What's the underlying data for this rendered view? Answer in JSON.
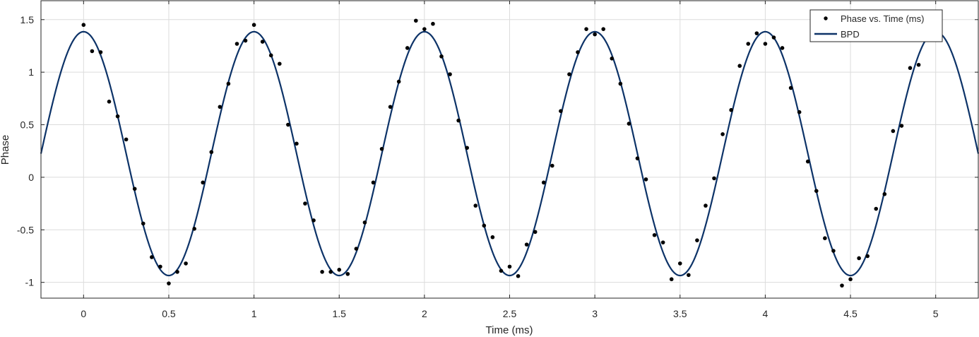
{
  "chart_data": {
    "type": "scatter",
    "xlabel": "Time (ms)",
    "ylabel": "Phase",
    "xlim": [
      -0.25,
      5.25
    ],
    "ylim": [
      -1.15,
      1.68
    ],
    "xticks": [
      0,
      0.5,
      1,
      1.5,
      2,
      2.5,
      3,
      3.5,
      4,
      4.5,
      5
    ],
    "xtick_labels": [
      "0",
      "0.5",
      "1",
      "1.5",
      "2",
      "2.5",
      "3",
      "3.5",
      "4",
      "4.5",
      "5"
    ],
    "yticks": [
      -1,
      -0.5,
      0,
      0.5,
      1,
      1.5
    ],
    "ytick_labels": [
      "-1",
      "-0.5",
      "0",
      "0.5",
      "1",
      "1.5"
    ],
    "grid": true,
    "legend_position": "top-right",
    "series": [
      {
        "name": "Phase vs. Time (ms)",
        "kind": "markers",
        "color": "#000000",
        "x": [
          0,
          0.05,
          0.1,
          0.15,
          0.2,
          0.25,
          0.3,
          0.35,
          0.4,
          0.45,
          0.5,
          0.55,
          0.6,
          0.65,
          0.7,
          0.75,
          0.8,
          0.85,
          0.9,
          0.95,
          1,
          1.05,
          1.1,
          1.15,
          1.2,
          1.25,
          1.3,
          1.35,
          1.4,
          1.45,
          1.5,
          1.55,
          1.6,
          1.65,
          1.7,
          1.75,
          1.8,
          1.85,
          1.9,
          1.95,
          2,
          2.05,
          2.1,
          2.15,
          2.2,
          2.25,
          2.3,
          2.35,
          2.4,
          2.45,
          2.5,
          2.55,
          2.6,
          2.65,
          2.7,
          2.75,
          2.8,
          2.85,
          2.9,
          2.95,
          3,
          3.05,
          3.1,
          3.15,
          3.2,
          3.25,
          3.3,
          3.35,
          3.4,
          3.45,
          3.5,
          3.55,
          3.6,
          3.65,
          3.7,
          3.75,
          3.8,
          3.85,
          3.9,
          3.95,
          4,
          4.05,
          4.1,
          4.15,
          4.2,
          4.25,
          4.3,
          4.35,
          4.4,
          4.45,
          4.5,
          4.55,
          4.6,
          4.65,
          4.7,
          4.75,
          4.8,
          4.85,
          4.9
        ],
        "y": [
          1.45,
          1.2,
          1.19,
          0.72,
          0.58,
          0.36,
          -0.11,
          -0.44,
          -0.76,
          -0.85,
          -1.01,
          -0.9,
          -0.82,
          -0.49,
          -0.05,
          0.24,
          0.67,
          0.89,
          1.27,
          1.3,
          1.45,
          1.29,
          1.16,
          1.08,
          0.5,
          0.32,
          -0.25,
          -0.41,
          -0.9,
          -0.9,
          -0.88,
          -0.92,
          -0.68,
          -0.43,
          -0.05,
          0.27,
          0.67,
          0.91,
          1.23,
          1.49,
          1.41,
          1.46,
          1.15,
          0.98,
          0.54,
          0.28,
          -0.27,
          -0.46,
          -0.57,
          -0.89,
          -0.85,
          -0.94,
          -0.64,
          -0.52,
          -0.05,
          0.11,
          0.63,
          0.98,
          1.19,
          1.41,
          1.36,
          1.41,
          1.13,
          0.89,
          0.51,
          0.18,
          -0.02,
          -0.55,
          -0.62,
          -0.97,
          -0.82,
          -0.93,
          -0.6,
          -0.27,
          -0.01,
          0.41,
          0.64,
          1.06,
          1.27,
          1.37,
          1.27,
          1.33,
          1.23,
          0.85,
          0.62,
          0.15,
          -0.13,
          -0.58,
          -0.7,
          -1.03,
          -0.97,
          -0.77,
          -0.75,
          -0.3,
          -0.16,
          0.44,
          0.49,
          1.04,
          1.07
        ]
      },
      {
        "name": "BPD",
        "kind": "line",
        "color": "#0d3368",
        "model": "0.225 + 1.16 * cos(2π x)"
      }
    ]
  }
}
